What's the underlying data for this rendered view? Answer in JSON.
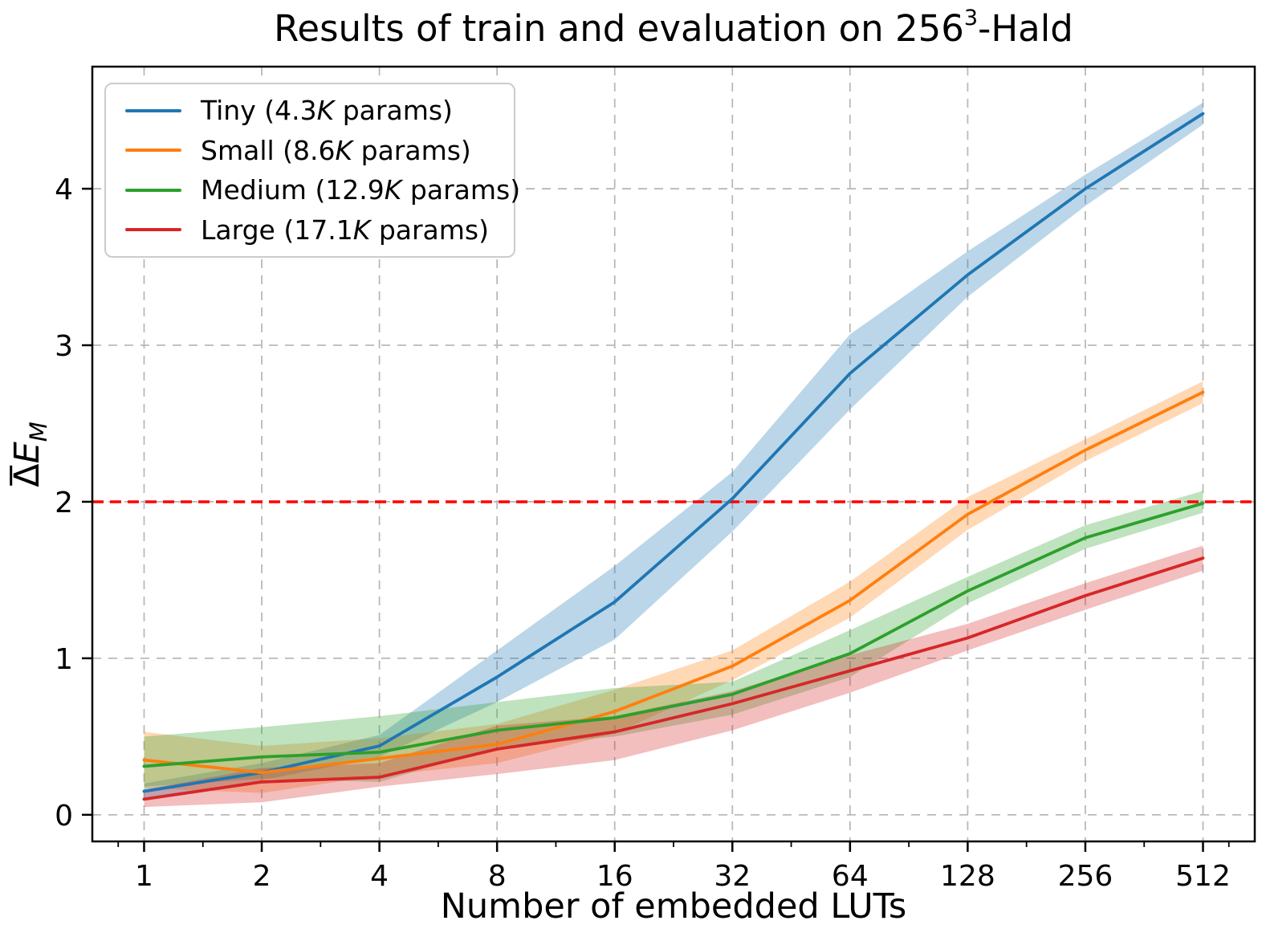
{
  "chart_data": {
    "type": "line",
    "title": "Results of train and evaluation on 256³-Hald",
    "title_parts": {
      "prefix": "Results of train and evaluation on 256",
      "superscript": "3",
      "suffix": "-Hald"
    },
    "xlabel": "Number of embedded LUTs",
    "ylabel": "Δ̄E_M",
    "ylabel_parts": {
      "delta": "Δ",
      "main": "E",
      "sub": "M"
    },
    "x_scale": "log2",
    "x": [
      1,
      2,
      4,
      8,
      16,
      32,
      64,
      128,
      256,
      512
    ],
    "x_ticks": [
      1,
      2,
      4,
      8,
      16,
      32,
      64,
      128,
      256,
      512
    ],
    "y_ticks": [
      0,
      1,
      2,
      3,
      4
    ],
    "xlim_log2": [
      -0.44,
      9.44
    ],
    "ylim": [
      -0.17,
      4.78
    ],
    "grid": true,
    "grid_style": "dashed",
    "legend_position": "upper left",
    "reference_line": {
      "y": 2,
      "color": "#ff0000",
      "style": "dashed"
    },
    "band_opacity": 0.3,
    "series": [
      {
        "name": "Tiny (4.3K params)",
        "label_parts": {
          "pre": "Tiny (4.3",
          "italic": "K",
          "post": " params)"
        },
        "color": "#1f77b4",
        "values": [
          0.15,
          0.27,
          0.44,
          0.88,
          1.36,
          2.02,
          2.82,
          3.45,
          4.0,
          4.48
        ],
        "band_lower": [
          0.1,
          0.22,
          0.37,
          0.72,
          1.12,
          1.81,
          2.59,
          3.31,
          3.89,
          4.41
        ],
        "band_upper": [
          0.2,
          0.33,
          0.51,
          1.05,
          1.59,
          2.19,
          3.07,
          3.6,
          4.09,
          4.55
        ]
      },
      {
        "name": "Small (8.6K params)",
        "label_parts": {
          "pre": "Small (8.6",
          "italic": "K",
          "post": " params)"
        },
        "color": "#ff7f0e",
        "values": [
          0.35,
          0.27,
          0.36,
          0.45,
          0.66,
          0.95,
          1.37,
          1.92,
          2.33,
          2.7
        ],
        "band_lower": [
          0.17,
          0.14,
          0.25,
          0.33,
          0.52,
          0.86,
          1.26,
          1.82,
          2.26,
          2.63
        ],
        "band_upper": [
          0.53,
          0.44,
          0.49,
          0.58,
          0.8,
          1.05,
          1.49,
          2.03,
          2.4,
          2.77
        ]
      },
      {
        "name": "Medium (12.9K params)",
        "label_parts": {
          "pre": "Medium (12.9",
          "italic": "K",
          "post": " params)"
        },
        "color": "#2ca02c",
        "values": [
          0.31,
          0.37,
          0.4,
          0.54,
          0.62,
          0.77,
          1.03,
          1.43,
          1.77,
          1.99
        ],
        "band_lower": [
          0.18,
          0.23,
          0.21,
          0.43,
          0.5,
          0.64,
          0.88,
          1.35,
          1.7,
          1.93
        ],
        "band_upper": [
          0.5,
          0.56,
          0.63,
          0.72,
          0.81,
          0.85,
          1.18,
          1.52,
          1.85,
          2.07
        ]
      },
      {
        "name": "Large (17.1K params)",
        "label_parts": {
          "pre": "Large (17.1",
          "italic": "K",
          "post": " params)"
        },
        "color": "#d62728",
        "values": [
          0.1,
          0.21,
          0.24,
          0.42,
          0.53,
          0.71,
          0.92,
          1.13,
          1.4,
          1.64
        ],
        "band_lower": [
          0.05,
          0.08,
          0.18,
          0.26,
          0.35,
          0.54,
          0.78,
          1.05,
          1.31,
          1.56
        ],
        "band_upper": [
          0.16,
          0.3,
          0.33,
          0.57,
          0.63,
          0.79,
          1.02,
          1.22,
          1.48,
          1.72
        ]
      }
    ],
    "colors": {
      "grid": "#b9b9b9",
      "spine": "#000000",
      "tick": "#000000",
      "background": "#ffffff"
    }
  }
}
